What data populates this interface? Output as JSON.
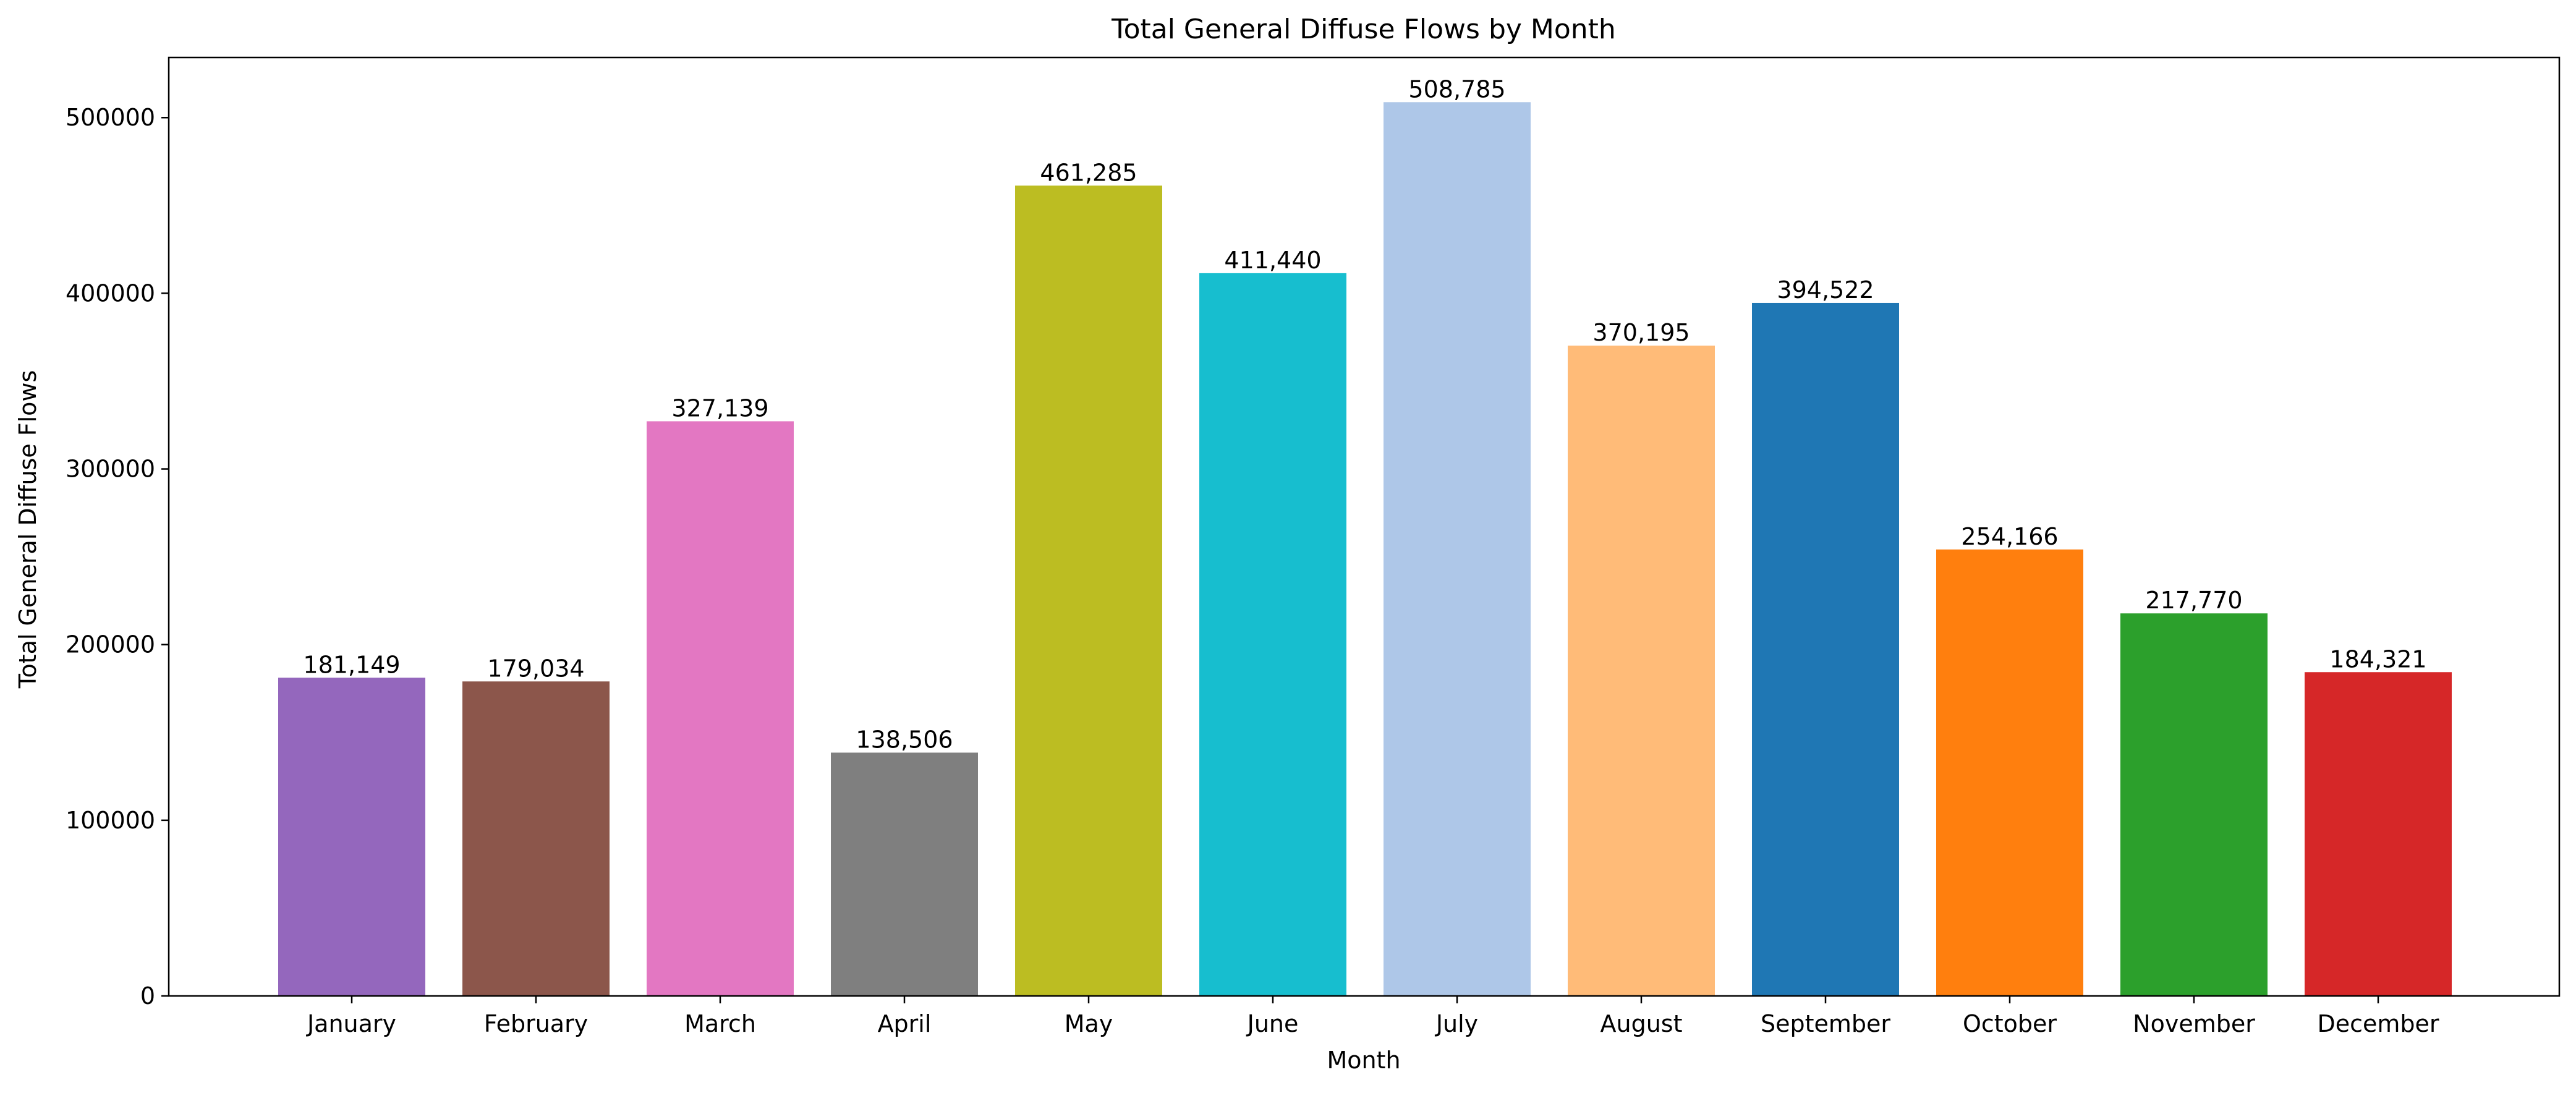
{
  "chart_data": {
    "type": "bar",
    "title": "Total General Diffuse Flows by Month",
    "xlabel": "Month",
    "ylabel": "Total General Diffuse Flows",
    "categories": [
      "January",
      "February",
      "March",
      "April",
      "May",
      "June",
      "July",
      "August",
      "September",
      "October",
      "November",
      "December"
    ],
    "values": [
      181149,
      179034,
      327139,
      138506,
      461285,
      411440,
      508785,
      370195,
      394522,
      254166,
      217770,
      184321
    ],
    "value_labels": [
      "181,149",
      "179,034",
      "327,139",
      "138,506",
      "461,285",
      "411,440",
      "508,785",
      "370,195",
      "394,522",
      "254,166",
      "217,770",
      "184,321"
    ],
    "colors": [
      "#9467bd",
      "#8c564b",
      "#e377c2",
      "#7f7f7f",
      "#bcbd22",
      "#17becf",
      "#aec7e8",
      "#ffbb78",
      "#1f77b4",
      "#ff7f0e",
      "#2ca02c",
      "#d62728"
    ],
    "yticks": [
      0,
      100000,
      200000,
      300000,
      400000,
      500000
    ],
    "ytick_labels": [
      "0",
      "100000",
      "200000",
      "300000",
      "400000",
      "500000"
    ],
    "ylim": [
      0,
      534224
    ],
    "grid": false,
    "legend": "none"
  }
}
